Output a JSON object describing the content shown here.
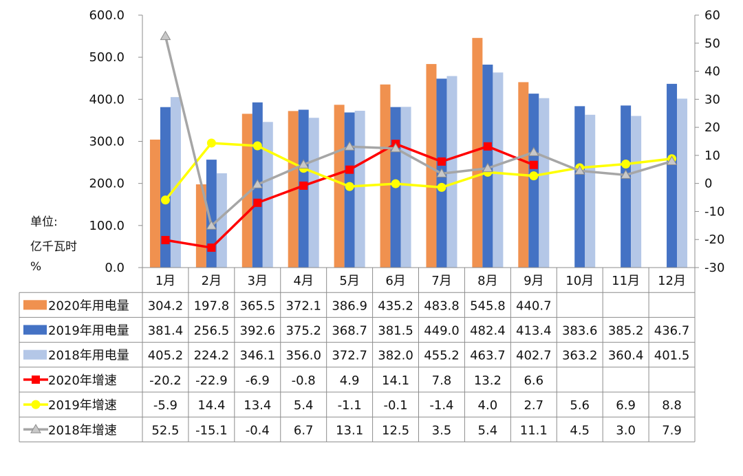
{
  "chart_data": {
    "type": "bar",
    "title": "",
    "unit_label": "单位:",
    "unit_primary": "亿千瓦时",
    "unit_secondary": "%",
    "categories": [
      "1月",
      "2月",
      "3月",
      "4月",
      "5月",
      "6月",
      "7月",
      "8月",
      "9月",
      "10月",
      "11月",
      "12月"
    ],
    "y_left": {
      "min": 0,
      "max": 600,
      "step": 100,
      "tick_labels": [
        "0.0",
        "100.0",
        "200.0",
        "300.0",
        "400.0",
        "500.0",
        "600.0"
      ]
    },
    "y_right": {
      "min": -30,
      "max": 60,
      "step": 10,
      "tick_labels": [
        "-30",
        "-20",
        "-10",
        "0",
        "10",
        "20",
        "30",
        "40",
        "50",
        "60"
      ]
    },
    "bar_series": [
      {
        "name": "2020年用电量",
        "color": "#F0914F",
        "values": [
          304.2,
          197.8,
          365.5,
          372.1,
          386.9,
          435.2,
          483.8,
          545.8,
          440.7,
          null,
          null,
          null
        ],
        "labels": [
          "304.2",
          "197.8",
          "365.5",
          "372.1",
          "386.9",
          "435.2",
          "483.8",
          "545.8",
          "440.7",
          "",
          "",
          ""
        ]
      },
      {
        "name": "2019年用电量",
        "color": "#4472C4",
        "values": [
          381.4,
          256.5,
          392.6,
          375.2,
          368.7,
          381.5,
          449.0,
          482.4,
          413.4,
          383.6,
          385.2,
          436.7
        ],
        "labels": [
          "381.4",
          "256.5",
          "392.6",
          "375.2",
          "368.7",
          "381.5",
          "449.0",
          "482.4",
          "413.4",
          "383.6",
          "385.2",
          "436.7"
        ]
      },
      {
        "name": "2018年用电量",
        "color": "#B4C7E7",
        "values": [
          405.2,
          224.2,
          346.1,
          356.0,
          372.7,
          382.0,
          455.2,
          463.7,
          402.7,
          363.2,
          360.4,
          401.5
        ],
        "labels": [
          "405.2",
          "224.2",
          "346.1",
          "356.0",
          "372.7",
          "382.0",
          "455.2",
          "463.7",
          "402.7",
          "363.2",
          "360.4",
          "401.5"
        ]
      }
    ],
    "line_series": [
      {
        "name": "2020年增速",
        "color": "#FF0000",
        "marker": "square",
        "values": [
          -20.2,
          -22.9,
          -6.9,
          -0.8,
          4.9,
          14.1,
          7.8,
          13.2,
          6.6,
          null,
          null,
          null
        ],
        "labels": [
          "-20.2",
          "-22.9",
          "-6.9",
          "-0.8",
          "4.9",
          "14.1",
          "7.8",
          "13.2",
          "6.6",
          "",
          "",
          ""
        ]
      },
      {
        "name": "2019年增速",
        "color": "#FFFF00",
        "marker": "circle",
        "values": [
          -5.9,
          14.4,
          13.4,
          5.4,
          -1.1,
          -0.1,
          -1.4,
          4.0,
          2.7,
          5.6,
          6.9,
          8.8
        ],
        "labels": [
          "-5.9",
          "14.4",
          "13.4",
          "5.4",
          "-1.1",
          "-0.1",
          "-1.4",
          "4.0",
          "2.7",
          "5.6",
          "6.9",
          "8.8"
        ]
      },
      {
        "name": "2018年增速",
        "color": "#A6A6A6",
        "marker": "triangle",
        "values": [
          52.5,
          -15.1,
          -0.4,
          6.7,
          13.1,
          12.5,
          3.5,
          5.4,
          11.1,
          4.5,
          3.0,
          7.9
        ],
        "labels": [
          "52.5",
          "-15.1",
          "-0.4",
          "6.7",
          "13.1",
          "12.5",
          "3.5",
          "5.4",
          "11.1",
          "4.5",
          "3.0",
          "7.9"
        ]
      }
    ],
    "legend": "data-table-below",
    "grid": false
  }
}
